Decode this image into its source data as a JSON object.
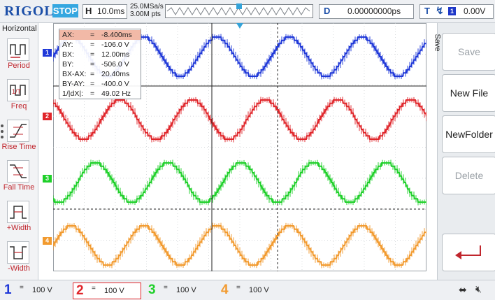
{
  "topbar": {
    "brand": "RIGOL",
    "run_state": "STOP",
    "timebase_label": "H",
    "timebase_value": "10.0ms",
    "sample_rate": "25.0MSa/s",
    "memory_depth": "3.00M pts",
    "delay_label": "D",
    "delay_value": "0.00000000ps",
    "trigger_label": "T",
    "trigger_edge_icon": "rising-edge-icon",
    "trigger_source": "1",
    "trigger_level": "0.00V"
  },
  "left_menu": {
    "title": "Horizontal",
    "items": [
      {
        "label": "Period",
        "icon": "period-icon"
      },
      {
        "label": "Freq",
        "icon": "freq-icon"
      },
      {
        "label": "Rise Time",
        "icon": "rise-time-icon"
      },
      {
        "label": "Fall Time",
        "icon": "fall-time-icon"
      },
      {
        "label": "+Width",
        "icon": "positive-width-icon"
      },
      {
        "label": "-Width",
        "icon": "negative-width-icon"
      }
    ]
  },
  "cursor_readout": [
    {
      "key": "AX:",
      "eq": "=",
      "value": "-8.400ms"
    },
    {
      "key": "AY:",
      "eq": "=",
      "value": "-106.0 V"
    },
    {
      "key": "BX:",
      "eq": "=",
      "value": "12.00ms"
    },
    {
      "key": "BY:",
      "eq": "=",
      "value": "-506.0 V"
    },
    {
      "key": "BX-AX:",
      "eq": "=",
      "value": "20.40ms"
    },
    {
      "key": "BY-AY:",
      "eq": "=",
      "value": "-400.0 V"
    },
    {
      "key": "1/|dX|:",
      "eq": "=",
      "value": "49.02 Hz"
    }
  ],
  "channel_markers": [
    "1",
    "2",
    "3",
    "4"
  ],
  "right_menu": {
    "title": "Save",
    "buttons": [
      {
        "label": "Save",
        "enabled": false
      },
      {
        "label": "New File",
        "enabled": true
      },
      {
        "label": "NewFolder",
        "enabled": true
      },
      {
        "label": "Delete",
        "enabled": false
      }
    ],
    "return_icon": "return-arrow-icon"
  },
  "channels": [
    {
      "number": "1",
      "coupling": "=",
      "scale": "100 V",
      "color": "#1f38d8"
    },
    {
      "number": "2",
      "coupling": "=",
      "scale": "100 V",
      "color": "#e0262b"
    },
    {
      "number": "3",
      "coupling": "=",
      "scale": "100 V",
      "color": "#1fd02a"
    },
    {
      "number": "4",
      "coupling": "=",
      "scale": "100 V",
      "color": "#f29a2e"
    }
  ],
  "status_icons": [
    "usb-icon",
    "mute-icon"
  ],
  "colors": {
    "brand": "#1c4fa8",
    "stop_badge": "#35a7e0",
    "menu_label": "#c0262d",
    "cursor_highlight": "#f2b9a7"
  }
}
